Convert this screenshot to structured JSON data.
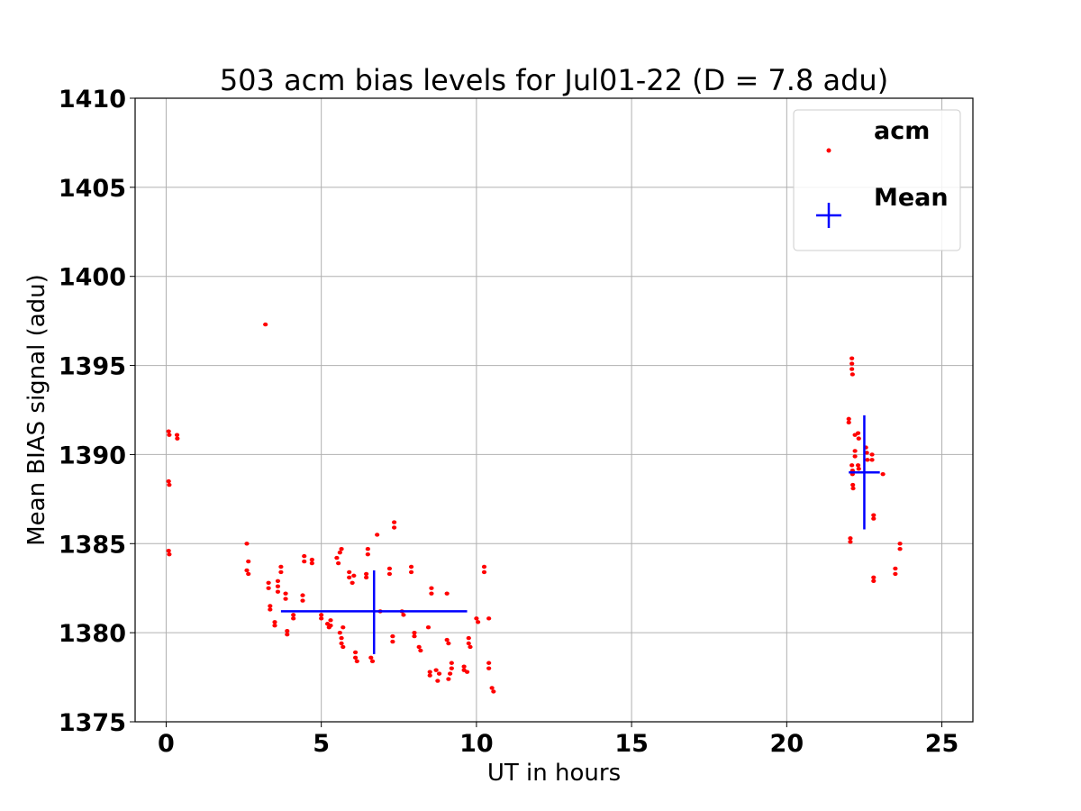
{
  "chart_data": {
    "type": "scatter",
    "title": "503 acm bias levels for Jul01-22 (D = 7.8 adu)",
    "xlabel": "UT in hours",
    "ylabel": "Mean BIAS signal (adu)",
    "xlim": [
      -1,
      26
    ],
    "ylim": [
      1375,
      1410
    ],
    "xticks": [
      "0",
      "5",
      "10",
      "15",
      "20",
      "25"
    ],
    "yticks": [
      "1375",
      "1380",
      "1385",
      "1390",
      "1395",
      "1400",
      "1405",
      "1410"
    ],
    "grid": true,
    "legend_position": "top-right",
    "colors": {
      "acm": "#ff0000",
      "mean": "#0000ff"
    },
    "series": [
      {
        "name": "acm",
        "marker": "dot",
        "points": [
          [
            0.08,
            1391.3
          ],
          [
            0.1,
            1391.1
          ],
          [
            0.08,
            1388.5
          ],
          [
            0.1,
            1388.3
          ],
          [
            0.08,
            1384.6
          ],
          [
            0.1,
            1384.4
          ],
          [
            0.35,
            1391.1
          ],
          [
            0.36,
            1390.9
          ],
          [
            2.6,
            1385.0
          ],
          [
            2.65,
            1384.0
          ],
          [
            2.6,
            1383.5
          ],
          [
            2.65,
            1383.3
          ],
          [
            3.2,
            1397.3
          ],
          [
            3.3,
            1382.8
          ],
          [
            3.3,
            1382.5
          ],
          [
            3.35,
            1381.5
          ],
          [
            3.35,
            1381.3
          ],
          [
            3.5,
            1380.6
          ],
          [
            3.5,
            1380.4
          ],
          [
            3.6,
            1382.9
          ],
          [
            3.6,
            1382.6
          ],
          [
            3.6,
            1382.3
          ],
          [
            3.7,
            1383.7
          ],
          [
            3.7,
            1383.4
          ],
          [
            3.85,
            1382.2
          ],
          [
            3.85,
            1381.9
          ],
          [
            3.9,
            1380.1
          ],
          [
            3.9,
            1379.9
          ],
          [
            4.1,
            1381.0
          ],
          [
            4.1,
            1380.8
          ],
          [
            4.4,
            1382.1
          ],
          [
            4.4,
            1381.8
          ],
          [
            4.45,
            1384.3
          ],
          [
            4.45,
            1384.0
          ],
          [
            4.7,
            1384.1
          ],
          [
            4.7,
            1383.9
          ],
          [
            5.0,
            1381.0
          ],
          [
            5.0,
            1380.8
          ],
          [
            5.2,
            1380.5
          ],
          [
            5.25,
            1380.3
          ],
          [
            5.3,
            1380.7
          ],
          [
            5.3,
            1380.4
          ],
          [
            5.5,
            1384.2
          ],
          [
            5.55,
            1383.9
          ],
          [
            5.6,
            1384.5
          ],
          [
            5.65,
            1384.7
          ],
          [
            5.6,
            1380.0
          ],
          [
            5.65,
            1379.7
          ],
          [
            5.65,
            1379.4
          ],
          [
            5.7,
            1379.2
          ],
          [
            5.7,
            1380.3
          ],
          [
            5.9,
            1383.4
          ],
          [
            5.9,
            1383.1
          ],
          [
            6.0,
            1382.8
          ],
          [
            6.05,
            1383.2
          ],
          [
            6.1,
            1378.9
          ],
          [
            6.1,
            1378.6
          ],
          [
            6.15,
            1378.4
          ],
          [
            6.45,
            1383.3
          ],
          [
            6.45,
            1383.1
          ],
          [
            6.5,
            1384.7
          ],
          [
            6.5,
            1384.4
          ],
          [
            6.6,
            1378.6
          ],
          [
            6.65,
            1378.4
          ],
          [
            6.8,
            1385.5
          ],
          [
            6.9,
            1381.2
          ],
          [
            7.2,
            1383.6
          ],
          [
            7.2,
            1383.3
          ],
          [
            7.3,
            1379.8
          ],
          [
            7.3,
            1379.5
          ],
          [
            7.35,
            1386.2
          ],
          [
            7.35,
            1385.9
          ],
          [
            7.6,
            1381.2
          ],
          [
            7.65,
            1381.0
          ],
          [
            7.9,
            1383.7
          ],
          [
            7.9,
            1383.4
          ],
          [
            8.0,
            1380.0
          ],
          [
            8.0,
            1379.8
          ],
          [
            8.15,
            1379.2
          ],
          [
            8.2,
            1379.0
          ],
          [
            8.45,
            1380.3
          ],
          [
            8.5,
            1377.8
          ],
          [
            8.5,
            1377.6
          ],
          [
            8.55,
            1382.5
          ],
          [
            8.55,
            1382.2
          ],
          [
            8.7,
            1377.9
          ],
          [
            8.75,
            1377.3
          ],
          [
            8.8,
            1377.7
          ],
          [
            9.05,
            1382.2
          ],
          [
            9.05,
            1379.6
          ],
          [
            9.1,
            1379.4
          ],
          [
            9.1,
            1377.4
          ],
          [
            9.15,
            1377.7
          ],
          [
            9.2,
            1378.3
          ],
          [
            9.2,
            1378.0
          ],
          [
            9.6,
            1378.1
          ],
          [
            9.6,
            1377.9
          ],
          [
            9.7,
            1377.8
          ],
          [
            9.75,
            1379.7
          ],
          [
            9.75,
            1379.4
          ],
          [
            9.8,
            1379.2
          ],
          [
            10.0,
            1380.8
          ],
          [
            10.05,
            1380.6
          ],
          [
            10.25,
            1383.7
          ],
          [
            10.25,
            1383.4
          ],
          [
            10.4,
            1380.8
          ],
          [
            10.4,
            1378.3
          ],
          [
            10.4,
            1378.0
          ],
          [
            10.5,
            1376.9
          ],
          [
            10.55,
            1376.7
          ],
          [
            22.0,
            1392.0
          ],
          [
            22.0,
            1391.8
          ],
          [
            22.05,
            1385.3
          ],
          [
            22.05,
            1385.1
          ],
          [
            22.1,
            1395.4
          ],
          [
            22.1,
            1395.1
          ],
          [
            22.1,
            1394.8
          ],
          [
            22.12,
            1394.5
          ],
          [
            22.1,
            1389.4
          ],
          [
            22.12,
            1389.1
          ],
          [
            22.12,
            1388.9
          ],
          [
            22.13,
            1388.3
          ],
          [
            22.14,
            1388.1
          ],
          [
            22.2,
            1390.2
          ],
          [
            22.2,
            1389.9
          ],
          [
            22.2,
            1391.1
          ],
          [
            22.3,
            1391.2
          ],
          [
            22.32,
            1390.9
          ],
          [
            22.3,
            1389.4
          ],
          [
            22.32,
            1389.2
          ],
          [
            22.55,
            1390.4
          ],
          [
            22.58,
            1390.1
          ],
          [
            22.6,
            1389.7
          ],
          [
            22.75,
            1390.0
          ],
          [
            22.75,
            1389.7
          ],
          [
            22.8,
            1386.6
          ],
          [
            22.8,
            1386.4
          ],
          [
            22.8,
            1383.1
          ],
          [
            22.8,
            1382.9
          ],
          [
            23.1,
            1388.9
          ],
          [
            23.5,
            1383.6
          ],
          [
            23.5,
            1383.3
          ],
          [
            23.65,
            1385.0
          ],
          [
            23.65,
            1384.7
          ]
        ]
      },
      {
        "name": "Mean",
        "marker": "cross",
        "points": [
          {
            "x": 6.7,
            "y": 1381.2,
            "x_err": [
              3.7,
              9.7
            ],
            "y_err": [
              1378.8,
              1383.5
            ]
          },
          {
            "x": 22.5,
            "y": 1389.0,
            "x_err": [
              22.0,
              23.0
            ],
            "y_err": [
              1385.8,
              1392.2
            ]
          }
        ]
      }
    ]
  }
}
